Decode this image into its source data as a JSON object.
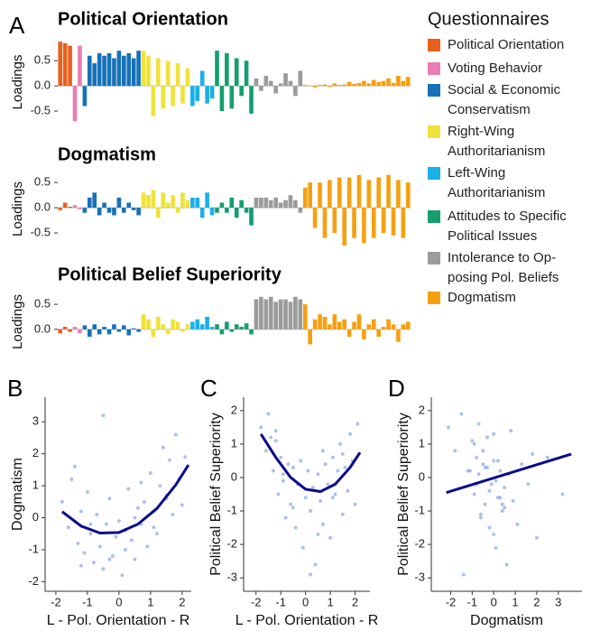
{
  "chart_data": [
    {
      "type": "bar",
      "label": "A",
      "legend_title": "Questionnaires",
      "groups": [
        {
          "name": "Political Orientation",
          "color": "#e8601c"
        },
        {
          "name": "Voting Behavior",
          "color": "#e87fb4"
        },
        {
          "name": "Social & Economic\nConservatism",
          "color": "#1771b8"
        },
        {
          "name": "Right-Wing\nAuthoritarianism",
          "color": "#f0e23c"
        },
        {
          "name": "Left-Wing\nAuthoritarianism",
          "color": "#1ab0e8"
        },
        {
          "name": "Attitudes to Specific\nPolitical Issues",
          "color": "#159e6e"
        },
        {
          "name": "Intolerance to Op-\nposing Pol. Beliefs",
          "color": "#9b9b9b"
        },
        {
          "name": "Dogmatism",
          "color": "#f5a011"
        }
      ],
      "subplots": [
        {
          "title": "Political Orientation",
          "ylabel": "Loadings",
          "ylim": [
            -0.75,
            0.9
          ],
          "yticks": [
            -0.5,
            {
              "value": 0,
              "label": "0.0"
            },
            0.5
          ],
          "values": [
            [
              0.88,
              0.85,
              0.8
            ],
            [
              -0.7,
              0.8
            ],
            [
              -0.4,
              0.6,
              0.45,
              0.65,
              0.6,
              0.65,
              0.55,
              0.7,
              0.6,
              0.65,
              0.55,
              0.7
            ],
            [
              0.7,
              0.6,
              -0.6,
              0.55,
              -0.45,
              0.5,
              -0.4,
              0.45,
              -0.35,
              0.35
            ],
            [
              -0.4,
              -0.3,
              0.3,
              -0.35,
              -0.25
            ],
            [
              0.7,
              -0.5,
              0.65,
              -0.45,
              0.55,
              -0.2,
              0.5,
              -0.55
            ],
            [
              0.15,
              -0.1,
              0.2,
              0.1,
              -0.15,
              0.05,
              0.25,
              0.1,
              -0.2,
              0.3
            ],
            [
              0.02,
              0.01,
              -0.03,
              0.02,
              0.03,
              -0.02,
              0.05,
              0.02,
              0.03,
              0.08,
              0.04,
              0.06,
              0.1,
              0.05,
              0.12,
              0.08,
              0.1,
              0.15,
              0.06,
              0.2,
              0.1,
              0.18
            ]
          ]
        },
        {
          "title": "Dogmatism",
          "ylabel": "Loadings",
          "ylim": [
            -0.75,
            0.7
          ],
          "yticks": [
            -0.5,
            {
              "value": 0,
              "label": "0.0"
            },
            0.5
          ],
          "values": [
            [
              -0.05,
              0.1,
              0.02
            ],
            [
              0.05,
              -0.03
            ],
            [
              -0.1,
              0.2,
              0.3,
              -0.15,
              0.1,
              -0.1,
              -0.15,
              0.2,
              -0.1,
              0.1,
              -0.05,
              -0.15
            ],
            [
              0.3,
              0.25,
              0.35,
              -0.2,
              0.3,
              0.1,
              0.25,
              -0.1,
              0.3,
              0.15
            ],
            [
              0.2,
              0.2,
              -0.2,
              0.3,
              -0.15
            ],
            [
              -0.1,
              0.1,
              -0.1,
              0.2,
              -0.2,
              0.15,
              -0.1,
              -0.35
            ],
            [
              0.2,
              0.2,
              0.2,
              0.15,
              0.2,
              0.1,
              0.15,
              0.25,
              0.15,
              -0.1
            ],
            [
              0.4,
              0.5,
              -0.4,
              0.5,
              -0.6,
              0.55,
              -0.5,
              0.6,
              -0.75,
              0.6,
              -0.6,
              0.65,
              -0.7,
              0.55,
              -0.6,
              0.6,
              -0.5,
              0.65,
              -0.55,
              0.55,
              -0.6,
              0.5
            ]
          ]
        },
        {
          "title": "Political Belief Superiority",
          "ylabel": "Loadings",
          "ylim": [
            -0.4,
            0.7
          ],
          "yticks": [
            -0.5,
            {
              "value": 0,
              "label": "0.0"
            },
            0.5
          ],
          "values": [
            [
              -0.08,
              0.05,
              -0.05
            ],
            [
              0.05,
              -0.08
            ],
            [
              0.08,
              -0.15,
              0.1,
              -0.1,
              0.05,
              -0.1,
              0.1,
              -0.05,
              0.08,
              -0.12,
              0.02,
              -0.05
            ],
            [
              0.3,
              0.2,
              -0.15,
              0.25,
              0.1,
              -0.1,
              0.2,
              0.15,
              -0.05,
              0.1
            ],
            [
              0.15,
              0.2,
              0.1,
              0.25,
              0.05
            ],
            [
              0.1,
              -0.1,
              0.15,
              -0.05,
              0.1,
              0.05,
              0.12,
              -0.1
            ],
            [
              0.6,
              0.65,
              0.6,
              0.65,
              0.55,
              0.6,
              0.6,
              0.55,
              0.65,
              0.6
            ],
            [
              0.5,
              -0.3,
              0.2,
              0.3,
              0.25,
              0.1,
              0.3,
              0.15,
              0.2,
              -0.15,
              0.15,
              0.3,
              -0.2,
              0.1,
              0.2,
              -0.15,
              0.05,
              0.2,
              0.1,
              -0.25,
              0.1,
              0.15
            ]
          ]
        }
      ]
    },
    {
      "type": "scatter",
      "label": "B",
      "xlabel": "L - Pol. Orientation - R",
      "ylabel": "Dogmatism",
      "xlim": [
        -2.34,
        2.29
      ],
      "ylim": [
        -2.3,
        3.77
      ],
      "xticks": [
        -2,
        -1,
        0,
        1,
        2
      ],
      "yticks": [
        -2,
        -1,
        0,
        1,
        2,
        3
      ],
      "color": "#6a8fdc",
      "x": [
        -1.8,
        -1.6,
        -1.5,
        -1.3,
        -1.2,
        -1.1,
        -1,
        -0.9,
        -0.8,
        -0.7,
        -0.6,
        -0.5,
        -0.4,
        -0.3,
        -0.2,
        -0.1,
        0,
        0.1,
        0.2,
        0.3,
        0.4,
        0.5,
        0.6,
        0.7,
        0.8,
        0.9,
        1,
        1.1,
        1.2,
        1.3,
        1.4,
        1.5,
        1.6,
        1.7,
        1.8,
        1.9,
        2,
        2.1,
        -1.4,
        -0.9,
        -0.5,
        0.2,
        0.7,
        1.1,
        -1.2,
        -0.3,
        0.5,
        1.5
      ],
      "y": [
        0.5,
        -0.3,
        1.2,
        -0.8,
        0.2,
        -1.1,
        0.8,
        -0.5,
        -1.4,
        0.1,
        -0.9,
        -1.6,
        -0.2,
        0.6,
        -1.2,
        -0.6,
        -0.1,
        -1.8,
        -0.4,
        0.9,
        -0.7,
        -1.3,
        0.3,
        -0.2,
        0.5,
        -0.9,
        1.4,
        0.2,
        -0.5,
        1.0,
        2.2,
        0.6,
        1.8,
        0.1,
        2.6,
        1.2,
        0.4,
        1.9,
        1.6,
        -0.2,
        3.2,
        -1.0,
        1.1,
        -0.3,
        -1.5,
        -1.3,
        0.0,
        0.7
      ],
      "fit": {
        "color": "#0a0a8c",
        "x": [
          -1.8,
          -1.2,
          -0.6,
          0,
          0.6,
          1.2,
          1.8,
          2.2
        ],
        "y": [
          0.19,
          -0.26,
          -0.48,
          -0.46,
          -0.2,
          0.29,
          1.03,
          1.65
        ]
      }
    },
    {
      "type": "scatter",
      "label": "C",
      "xlabel": "L - Pol. Orientation - R",
      "ylabel": "Political Belief Superiority",
      "xlim": [
        -2.5,
        2.6
      ],
      "ylim": [
        -3.4,
        2.4
      ],
      "xticks": [
        -2,
        -1,
        0,
        1,
        2
      ],
      "yticks": [
        -3,
        -2,
        -1,
        0,
        1,
        2
      ],
      "color": "#6a8fdc",
      "x": [
        -1.8,
        -1.6,
        -1.5,
        -1.3,
        -1.2,
        -1.1,
        -1,
        -0.9,
        -0.8,
        -0.7,
        -0.6,
        -0.5,
        -0.4,
        -0.3,
        -0.2,
        -0.1,
        0,
        0.1,
        0.2,
        0.3,
        0.4,
        0.5,
        0.6,
        0.7,
        0.8,
        0.9,
        1,
        1.1,
        1.2,
        1.3,
        1.4,
        1.5,
        1.6,
        1.7,
        1.8,
        1.9,
        2,
        2.1,
        -1.4,
        -0.9,
        -0.5,
        0.2,
        0.7,
        1.1,
        -1.2,
        -0.3,
        0.5,
        1.5
      ],
      "y": [
        1.5,
        0.8,
        1.9,
        0.2,
        1.1,
        -0.5,
        0.6,
        0.1,
        -1.2,
        0.4,
        -0.8,
        0.3,
        -1.5,
        -0.2,
        0.5,
        -2.1,
        -0.6,
        0.2,
        -1.0,
        -0.3,
        -2.6,
        0.1,
        -0.7,
        -1.4,
        0.4,
        -0.2,
        -1.8,
        0.6,
        -0.5,
        0.2,
        1.0,
        -1.1,
        0.3,
        -0.4,
        1.3,
        0.5,
        -0.8,
        1.6,
        1.2,
        -0.1,
        -0.9,
        -2.9,
        0.8,
        -0.6,
        1.4,
        -0.2,
        -1.7,
        0.7
      ],
      "fit": {
        "color": "#0a0a8c",
        "x": [
          -1.8,
          -1.2,
          -0.6,
          0,
          0.6,
          1.2,
          1.8,
          2.2
        ],
        "y": [
          1.3,
          0.6,
          0.0,
          -0.35,
          -0.42,
          -0.2,
          0.3,
          0.75
        ]
      }
    },
    {
      "type": "scatter",
      "label": "D",
      "xlabel": "Dogmatism",
      "ylabel": "Political Belief Superiority",
      "xlim": [
        -2.9,
        4.1
      ],
      "ylim": [
        -3.4,
        2.4
      ],
      "xticks": [
        -2,
        -1,
        0,
        1,
        2,
        3
      ],
      "yticks": [
        -3,
        -2,
        -1,
        0,
        1,
        2
      ],
      "color": "#6a8fdc",
      "x": [
        -2.1,
        -1.8,
        -1.5,
        -1.2,
        -1.0,
        -0.9,
        -0.8,
        -0.7,
        -0.6,
        -0.5,
        -0.4,
        -0.3,
        -0.2,
        -0.1,
        0,
        0.1,
        0.2,
        0.3,
        0.4,
        0.5,
        0.6,
        0.7,
        0.9,
        1.1,
        1.3,
        1.6,
        2.0,
        2.5,
        3.2,
        -1.1,
        -0.9,
        -0.6,
        -0.4,
        -0.2,
        0,
        0.2,
        0.4,
        -0.7,
        -0.3,
        0.1,
        0.5,
        -1.4,
        -0.5,
        0.3,
        0.8,
        -0.8,
        0.0,
        1.8
      ],
      "y": [
        1.5,
        0.8,
        1.9,
        0.2,
        1.1,
        -0.5,
        0.6,
        0.1,
        -1.2,
        0.4,
        -0.8,
        0.3,
        -1.5,
        -0.2,
        0.5,
        -2.1,
        -0.6,
        0.2,
        -1.0,
        -0.3,
        -2.6,
        0.1,
        -0.7,
        -1.4,
        0.4,
        -0.2,
        -1.8,
        0.6,
        -0.5,
        0.2,
        1.0,
        -1.1,
        0.3,
        -0.4,
        1.3,
        0.5,
        -0.8,
        1.6,
        1.2,
        -0.1,
        -0.9,
        -2.9,
        0.8,
        -0.6,
        1.4,
        -0.2,
        -1.7,
        0.7
      ],
      "fit": {
        "color": "#0a0a8c",
        "x": [
          -2.2,
          3.6
        ],
        "y": [
          -0.45,
          0.7
        ]
      }
    }
  ]
}
